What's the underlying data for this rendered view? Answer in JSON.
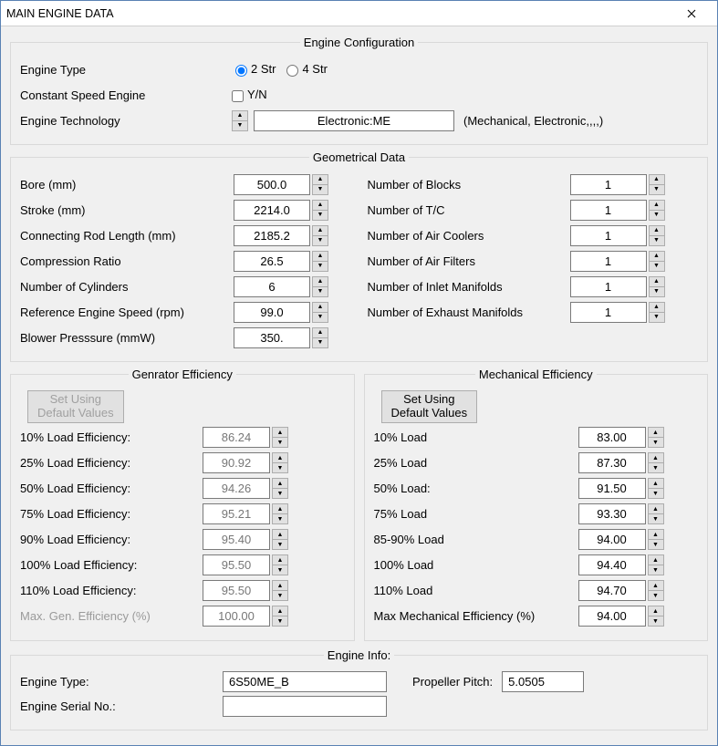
{
  "window": {
    "title": "MAIN ENGINE DATA"
  },
  "config": {
    "legend": "Engine Configuration",
    "engine_type_label": "Engine Type",
    "radio_2str": "2 Str",
    "radio_4str": "4 Str",
    "constant_speed_label": "Constant Speed Engine",
    "yn_label": "Y/N",
    "tech_label": "Engine Technology",
    "tech_value": "Electronic:ME",
    "tech_hint": "(Mechanical, Electronic,,,,)"
  },
  "geo": {
    "legend": "Geometrical Data",
    "left": [
      {
        "label": "Bore (mm)",
        "value": "500.0"
      },
      {
        "label": "Stroke (mm)",
        "value": "2214.0"
      },
      {
        "label": "Connecting Rod Length (mm)",
        "value": "2185.2"
      },
      {
        "label": "Compression Ratio",
        "value": "26.5"
      },
      {
        "label": "Number of Cylinders",
        "value": "6"
      },
      {
        "label": "Reference Engine Speed (rpm)",
        "value": "99.0"
      },
      {
        "label": "Blower Presssure (mmW)",
        "value": "350."
      }
    ],
    "right": [
      {
        "label": "Number of Blocks",
        "value": "1"
      },
      {
        "label": "Number of T/C",
        "value": "1"
      },
      {
        "label": "Number of Air Coolers",
        "value": "1"
      },
      {
        "label": "Number of Air Filters",
        "value": "1"
      },
      {
        "label": "Number of Inlet Manifolds",
        "value": "1"
      },
      {
        "label": "Number of Exhaust  Manifolds",
        "value": "1"
      }
    ]
  },
  "gen": {
    "legend": "Genrator Efficiency",
    "defaults_btn": "Set Using\nDefault Values",
    "rows": [
      {
        "label": "10% Load Efficiency:",
        "value": "86.24"
      },
      {
        "label": "25% Load Efficiency:",
        "value": "90.92"
      },
      {
        "label": "50% Load Efficiency:",
        "value": "94.26"
      },
      {
        "label": "75% Load Efficiency:",
        "value": "95.21"
      },
      {
        "label": "90% Load Efficiency:",
        "value": "95.40"
      },
      {
        "label": "100% Load Efficiency:",
        "value": "95.50"
      },
      {
        "label": "110% Load Efficiency:",
        "value": "95.50"
      }
    ],
    "max_label": "Max. Gen. Efficiency (%)",
    "max_value": "100.00"
  },
  "mech": {
    "legend": "Mechanical Efficiency",
    "defaults_btn": "Set Using\nDefault Values",
    "rows": [
      {
        "label": "10% Load",
        "value": "83.00"
      },
      {
        "label": "25% Load",
        "value": "87.30"
      },
      {
        "label": "50% Load:",
        "value": "91.50"
      },
      {
        "label": "75% Load",
        "value": "93.30"
      },
      {
        "label": "85-90% Load",
        "value": "94.00"
      },
      {
        "label": "100% Load",
        "value": "94.40"
      },
      {
        "label": "110% Load",
        "value": "94.70"
      }
    ],
    "max_label": "Max Mechanical Efficiency (%)",
    "max_value": "94.00"
  },
  "info": {
    "legend": "Engine Info:",
    "type_label": "Engine Type:",
    "type_value": "6S50ME_B",
    "pitch_label": "Propeller Pitch:",
    "pitch_value": "5.0505",
    "serial_label": "Engine Serial No.:",
    "serial_value": ""
  }
}
